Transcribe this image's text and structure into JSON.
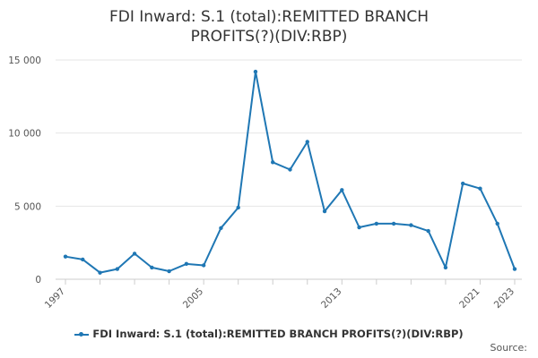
{
  "chart_data": {
    "type": "line",
    "title": "FDI Inward: S.1 (total):REMITTED BRANCH PROFITS(?)(DIV:RBP)",
    "xlabel": "",
    "ylabel": "",
    "x": [
      1997,
      1998,
      1999,
      2000,
      2001,
      2002,
      2003,
      2004,
      2005,
      2006,
      2007,
      2008,
      2009,
      2010,
      2011,
      2012,
      2013,
      2014,
      2015,
      2016,
      2017,
      2018,
      2019,
      2020,
      2021,
      2022,
      2023
    ],
    "x_tick_labels": [
      "1997",
      "2005",
      "2013",
      "2021",
      "2023"
    ],
    "xlim": [
      1997,
      2023
    ],
    "ylim": [
      0,
      15000
    ],
    "y_ticks": [
      0,
      5000,
      10000,
      15000
    ],
    "y_tick_labels": [
      "0",
      "5 000",
      "10 000",
      "15 000"
    ],
    "grid": true,
    "legend_position": "bottom",
    "series": [
      {
        "name": "FDI Inward: S.1 (total):REMITTED BRANCH PROFITS(?)(DIV:RBP)",
        "color": "#1f77b4",
        "values": [
          1550,
          1350,
          450,
          700,
          1750,
          800,
          550,
          1050,
          950,
          3500,
          4900,
          14200,
          8000,
          7500,
          9400,
          4650,
          6100,
          3550,
          3800,
          3800,
          3700,
          3300,
          800,
          6550,
          6200,
          3800,
          700
        ]
      }
    ]
  },
  "source_label": "Source:"
}
